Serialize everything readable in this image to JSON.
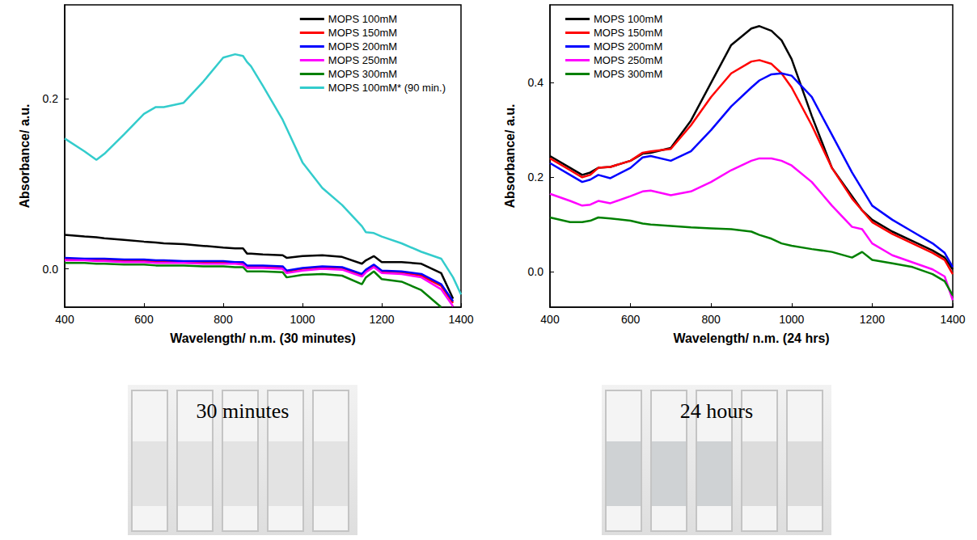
{
  "chart_data": [
    {
      "type": "line",
      "ylabel": "Absorbance/ a.u.",
      "xlabel": "Wavelength/ n.m. (30 minutes)",
      "xlim": [
        400,
        1400
      ],
      "xticks": [
        400,
        600,
        800,
        1000,
        1200,
        1400
      ],
      "ylim": [
        -0.045,
        0.31
      ],
      "yticks": [
        {
          "value": 0,
          "label": "0.0"
        },
        {
          "value": 0.2,
          "label": "0.2"
        }
      ],
      "grid": false,
      "legend": "upper right",
      "x": [
        400,
        450,
        480,
        500,
        550,
        600,
        630,
        650,
        700,
        750,
        800,
        830,
        850,
        860,
        870,
        900,
        950,
        960,
        1000,
        1050,
        1100,
        1150,
        1160,
        1180,
        1200,
        1250,
        1300,
        1350,
        1380,
        1400
      ],
      "series": [
        {
          "name": "MOPS 100mM",
          "color": "#000000",
          "values": [
            0.04,
            0.038,
            0.037,
            0.036,
            0.034,
            0.032,
            0.031,
            0.03,
            0.029,
            0.027,
            0.025,
            0.024,
            0.024,
            0.018,
            0.018,
            0.017,
            0.016,
            0.013,
            0.015,
            0.016,
            0.014,
            0.006,
            0.01,
            0.015,
            0.008,
            0.008,
            0.006,
            -0.005,
            -0.035,
            null
          ]
        },
        {
          "name": "MOPS 150mM",
          "color": "#ff0000",
          "values": [
            0.012,
            0.011,
            0.011,
            0.01,
            0.01,
            0.009,
            0.009,
            0.008,
            0.008,
            0.008,
            0.007,
            0.007,
            0.007,
            0.003,
            0.003,
            0.003,
            0.002,
            -0.003,
            0.0,
            0.002,
            0.001,
            -0.007,
            -0.002,
            0.004,
            -0.003,
            -0.004,
            -0.008,
            -0.02,
            -0.04,
            null
          ]
        },
        {
          "name": "MOPS 200mM",
          "color": "#0000ff",
          "values": [
            0.013,
            0.012,
            0.012,
            0.012,
            0.011,
            0.011,
            0.01,
            0.01,
            0.009,
            0.009,
            0.009,
            0.008,
            0.008,
            0.004,
            0.004,
            0.004,
            0.003,
            -0.002,
            0.001,
            0.003,
            0.002,
            -0.006,
            -0.001,
            0.005,
            -0.002,
            -0.003,
            -0.006,
            -0.018,
            -0.038,
            null
          ]
        },
        {
          "name": "MOPS 250mM",
          "color": "#ff00ff",
          "values": [
            0.01,
            0.01,
            0.009,
            0.009,
            0.008,
            0.008,
            0.007,
            0.007,
            0.007,
            0.006,
            0.006,
            0.006,
            0.005,
            0.001,
            0.001,
            0.001,
            0.0,
            -0.005,
            -0.002,
            0.0,
            -0.001,
            -0.009,
            -0.004,
            0.002,
            -0.005,
            -0.006,
            -0.01,
            -0.024,
            -0.044,
            null
          ]
        },
        {
          "name": "MOPS 300mM",
          "color": "#008000",
          "values": [
            0.007,
            0.007,
            0.006,
            0.006,
            0.005,
            0.005,
            0.004,
            0.004,
            0.004,
            0.003,
            0.003,
            0.002,
            0.002,
            -0.003,
            -0.003,
            -0.003,
            -0.004,
            -0.01,
            -0.007,
            -0.006,
            -0.008,
            -0.018,
            -0.01,
            -0.003,
            -0.012,
            -0.015,
            -0.025,
            -0.045,
            null,
            null
          ]
        },
        {
          "name": "MOPS 100mM* (90 min.)",
          "color": "#33cccc",
          "values": [
            0.153,
            0.138,
            0.128,
            0.135,
            0.158,
            0.182,
            0.19,
            0.19,
            0.195,
            0.22,
            0.248,
            0.252,
            0.25,
            0.243,
            0.238,
            0.215,
            0.175,
            0.165,
            0.125,
            0.095,
            0.075,
            0.05,
            0.043,
            0.042,
            0.038,
            0.03,
            0.02,
            0.012,
            -0.01,
            -0.03
          ]
        }
      ]
    },
    {
      "type": "line",
      "ylabel": "Absorbance/ a.u.",
      "xlabel": "Wavelength/ n.m. (24 hrs)",
      "xlim": [
        400,
        1400
      ],
      "xticks": [
        400,
        600,
        800,
        1000,
        1200,
        1400
      ],
      "ylim": [
        -0.075,
        0.565
      ],
      "yticks": [
        {
          "value": 0,
          "label": "0.0"
        },
        {
          "value": 0.2,
          "label": "0.2"
        },
        {
          "value": 0.4,
          "label": "0.4"
        }
      ],
      "grid": false,
      "legend": "upper left",
      "x": [
        400,
        450,
        480,
        500,
        520,
        550,
        600,
        630,
        650,
        700,
        750,
        800,
        850,
        900,
        920,
        950,
        975,
        1000,
        1050,
        1100,
        1150,
        1175,
        1200,
        1250,
        1300,
        1350,
        1380,
        1400
      ],
      "series": [
        {
          "name": "MOPS 100mM",
          "color": "#000000",
          "values": [
            0.245,
            0.22,
            0.205,
            0.21,
            0.22,
            0.222,
            0.235,
            0.25,
            0.252,
            0.262,
            0.32,
            0.4,
            0.48,
            0.515,
            0.52,
            0.51,
            0.49,
            0.45,
            0.33,
            0.22,
            0.16,
            0.13,
            0.11,
            0.085,
            0.065,
            0.045,
            0.03,
            0.005
          ]
        },
        {
          "name": "MOPS 150mM",
          "color": "#ff0000",
          "values": [
            0.24,
            0.215,
            0.2,
            0.205,
            0.22,
            0.222,
            0.235,
            0.252,
            0.255,
            0.26,
            0.31,
            0.37,
            0.42,
            0.445,
            0.448,
            0.44,
            0.42,
            0.39,
            0.31,
            0.22,
            0.155,
            0.13,
            0.105,
            0.08,
            0.06,
            0.04,
            0.025,
            -0.005
          ]
        },
        {
          "name": "MOPS 200mM",
          "color": "#0000ff",
          "values": [
            0.23,
            0.205,
            0.19,
            0.195,
            0.205,
            0.198,
            0.22,
            0.242,
            0.245,
            0.235,
            0.255,
            0.3,
            0.35,
            0.39,
            0.405,
            0.418,
            0.42,
            0.415,
            0.37,
            0.29,
            0.21,
            0.175,
            0.14,
            0.11,
            0.085,
            0.06,
            0.04,
            0.01
          ]
        },
        {
          "name": "MOPS 250mM",
          "color": "#ff00ff",
          "values": [
            0.165,
            0.15,
            0.14,
            0.142,
            0.15,
            0.145,
            0.16,
            0.17,
            0.172,
            0.162,
            0.17,
            0.19,
            0.215,
            0.235,
            0.24,
            0.24,
            0.235,
            0.225,
            0.19,
            0.14,
            0.095,
            0.09,
            0.06,
            0.035,
            0.02,
            0.005,
            -0.01,
            -0.06
          ]
        },
        {
          "name": "MOPS 300mM",
          "color": "#008000",
          "values": [
            0.115,
            0.105,
            0.105,
            0.108,
            0.115,
            0.113,
            0.108,
            0.102,
            0.1,
            0.097,
            0.094,
            0.092,
            0.09,
            0.085,
            0.078,
            0.07,
            0.06,
            0.055,
            0.048,
            0.042,
            0.03,
            0.042,
            0.025,
            0.018,
            0.01,
            -0.005,
            -0.02,
            -0.05
          ]
        }
      ]
    }
  ],
  "photos": [
    {
      "label": "30 minutes"
    },
    {
      "label": "24 hours"
    }
  ]
}
